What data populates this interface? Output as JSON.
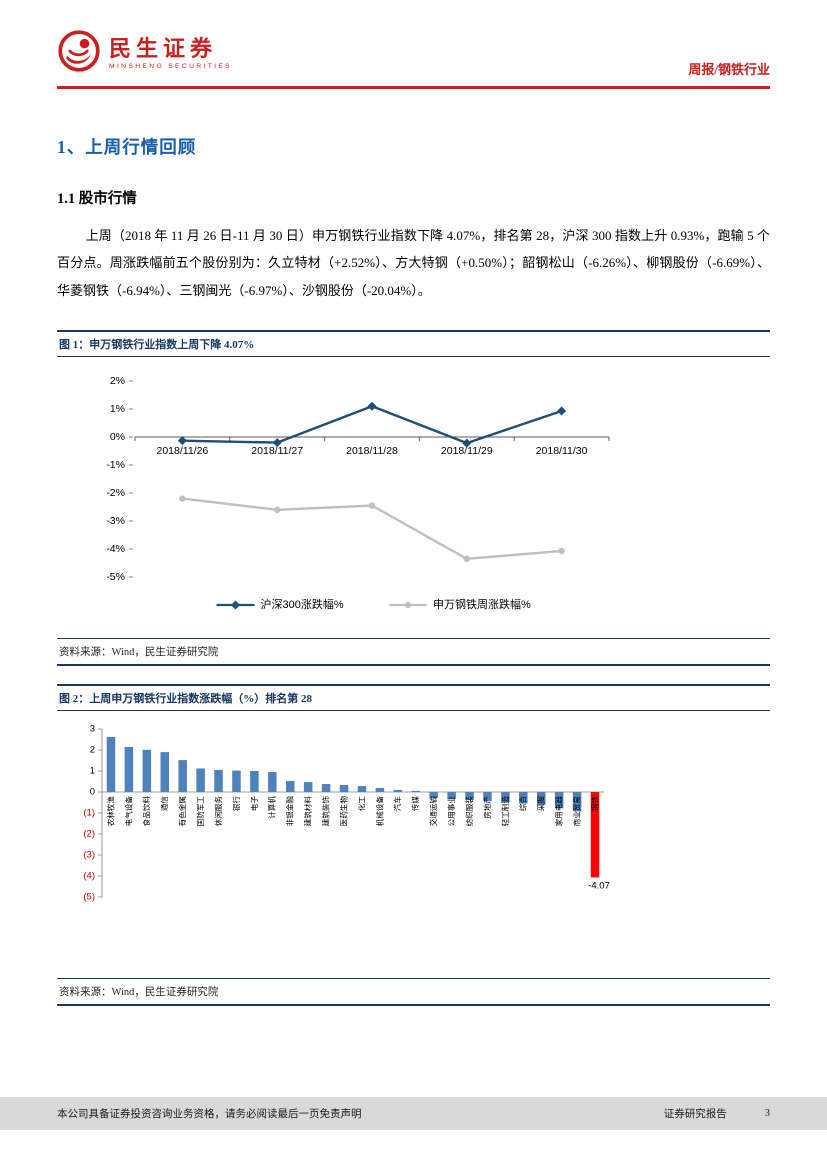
{
  "header": {
    "logo_cn": "民生证券",
    "logo_en": "MINSHENG SECURITIES",
    "report_type": "周报/钢铁行业"
  },
  "section": {
    "title": "1、上周行情回顾",
    "subtitle": "1.1 股市行情"
  },
  "body_paragraph": "上周（2018 年 11 月 26 日-11 月 30 日）申万钢铁行业指数下降 4.07%，排名第 28，沪深 300 指数上升 0.93%，跑输 5 个百分点。周涨跌幅前五个股份别为：久立特材（+2.52%）、方大特钢（+0.50%）；韶钢松山（-6.26%）、柳钢股份（-6.69%）、华菱钢铁（-6.94%）、三钢闽光（-6.97%）、沙钢股份（-20.04%）。",
  "figure1": {
    "title": "图 1：申万钢铁行业指数上周下降 4.07%",
    "source": "资料来源：Wind，民生证券研究院"
  },
  "figure2": {
    "title": "图 2：上周申万钢铁行业指数涨跌幅（%）排名第 28",
    "source": "资料来源：Wind，民生证券研究院"
  },
  "footer": {
    "left": "本公司具备证券投资咨询业务资格，请务必阅读最后一页免责声明",
    "right": "证券研究报告",
    "page": "3"
  },
  "colors": {
    "brand_red": "#C8201E",
    "heading_blue": "#1B5CA8",
    "figure_navy": "#17375E"
  },
  "chart_data": [
    {
      "type": "line",
      "title": "申万钢铁行业指数上周下降4.07%",
      "x": [
        "2018/11/26",
        "2018/11/27",
        "2018/11/28",
        "2018/11/29",
        "2018/11/30"
      ],
      "series": [
        {
          "name": "沪深300涨跌幅%",
          "color": "#1F4E79",
          "marker": "diamond",
          "values": [
            -0.13,
            -0.2,
            1.1,
            -0.22,
            0.93
          ]
        },
        {
          "name": "申万钢铁周涨跌幅%",
          "color": "#BFBFBF",
          "marker": "circle",
          "values": [
            -2.2,
            -2.6,
            -2.45,
            -4.35,
            -4.07
          ]
        }
      ],
      "ylim": [
        -5,
        2
      ],
      "yticks": [
        2,
        1,
        0,
        -1,
        -2,
        -3,
        -4,
        -5
      ],
      "ytick_suffix": "%",
      "legend_position": "bottom",
      "grid": false
    },
    {
      "type": "bar",
      "categories": [
        "农林牧渔",
        "电气设备",
        "食品饮料",
        "通信",
        "有色金属",
        "国防军工",
        "休闲服务",
        "银行",
        "电子",
        "计算机",
        "非银金融",
        "建筑材料",
        "建筑装饰",
        "医药生物",
        "化工",
        "机械设备",
        "汽车",
        "传媒",
        "交通运输",
        "公用事业",
        "纺织服装",
        "房地产",
        "轻工制造",
        "综合",
        "采掘",
        "家用电器",
        "商业贸易",
        "钢铁"
      ],
      "values": [
        2.62,
        2.14,
        2.01,
        1.9,
        1.52,
        1.12,
        1.05,
        1.02,
        1.0,
        0.95,
        0.52,
        0.47,
        0.38,
        0.33,
        0.28,
        0.19,
        0.1,
        0.05,
        -0.28,
        -0.33,
        -0.38,
        -0.44,
        -0.5,
        -0.55,
        -0.62,
        -0.78,
        -0.92,
        -4.07
      ],
      "ylim": [
        -5,
        3
      ],
      "yticks": [
        3,
        2,
        1,
        0,
        -1,
        -2,
        -3,
        -4,
        -5
      ],
      "bar_color": "#4F81BD",
      "highlight_index": 27,
      "highlight_color": "#FF0000",
      "highlight_label": "-4.07",
      "negative_tick_color": "#C00000",
      "grid": false
    }
  ]
}
